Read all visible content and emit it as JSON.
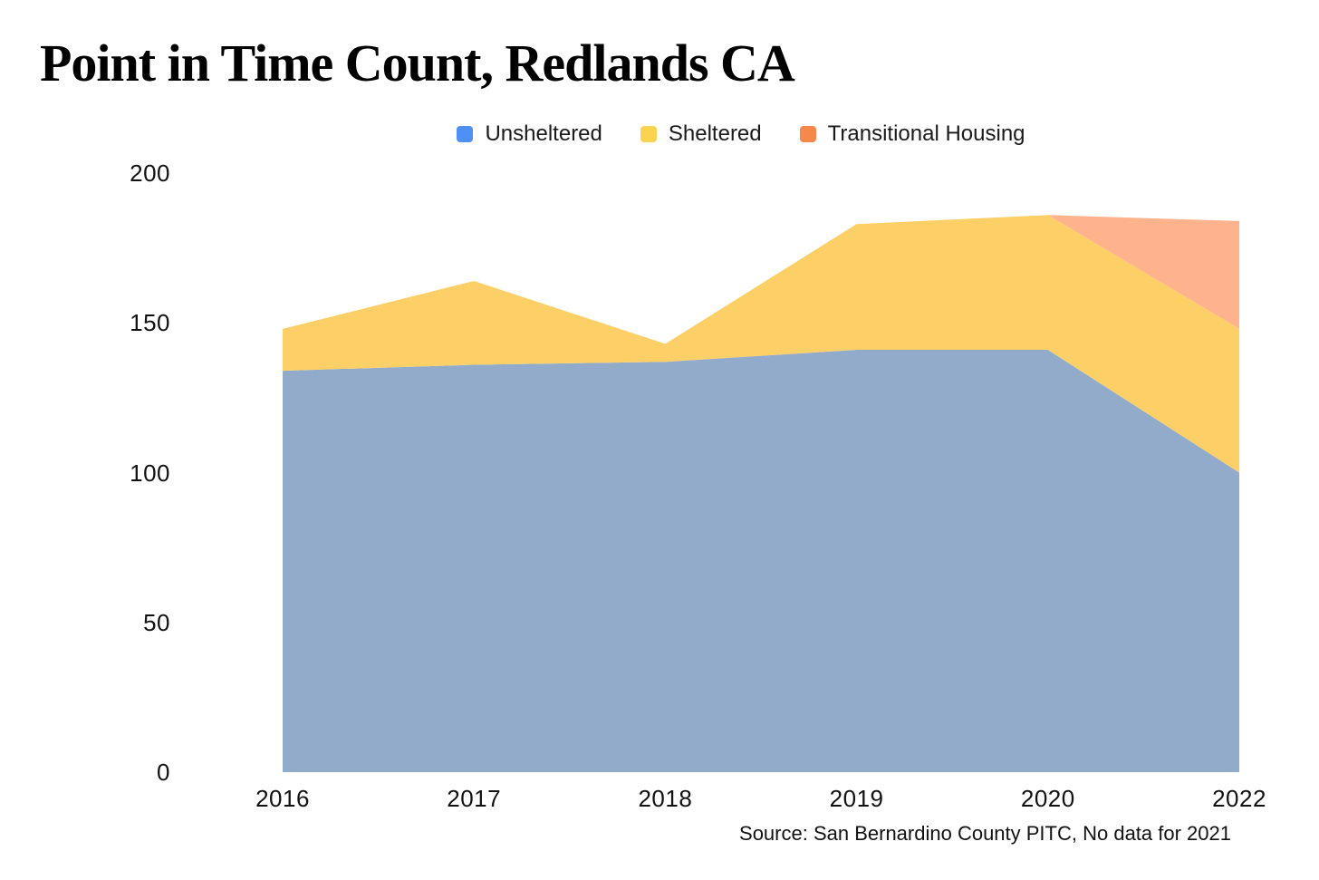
{
  "page": {
    "background": "#ffffff"
  },
  "header": {
    "title": "Point in Time Count, Redlands CA"
  },
  "chart_data": {
    "type": "area",
    "stacked": true,
    "title": "Point in Time Count, Redlands CA",
    "x_labels": [
      "2016",
      "2017",
      "2018",
      "2019",
      "2020",
      "2022"
    ],
    "series": [
      {
        "name": "Unsheltered",
        "area_color": "#93ABCB",
        "legend_color": "#4E90F6",
        "values": [
          134,
          136,
          137,
          141,
          141,
          100
        ]
      },
      {
        "name": "Sheltered",
        "area_color": "#FCD066",
        "legend_color": "#FBD351",
        "values": [
          14,
          28,
          6,
          42,
          45,
          48
        ]
      },
      {
        "name": "Transitional Housing",
        "area_color": "#FFB38C",
        "legend_color": "#F6884B",
        "values": [
          0,
          0,
          0,
          0,
          0,
          36
        ]
      }
    ],
    "stacked_totals": [
      148,
      164,
      143,
      183,
      186,
      184
    ],
    "ylim": [
      0,
      200
    ],
    "yticks": [
      0,
      50,
      100,
      150,
      200
    ],
    "legend_position": "top-center",
    "grid": false,
    "note": "No data for 2021"
  },
  "footer": {
    "source_note": "Source: San Bernardino County PITC, No data for 2021"
  }
}
